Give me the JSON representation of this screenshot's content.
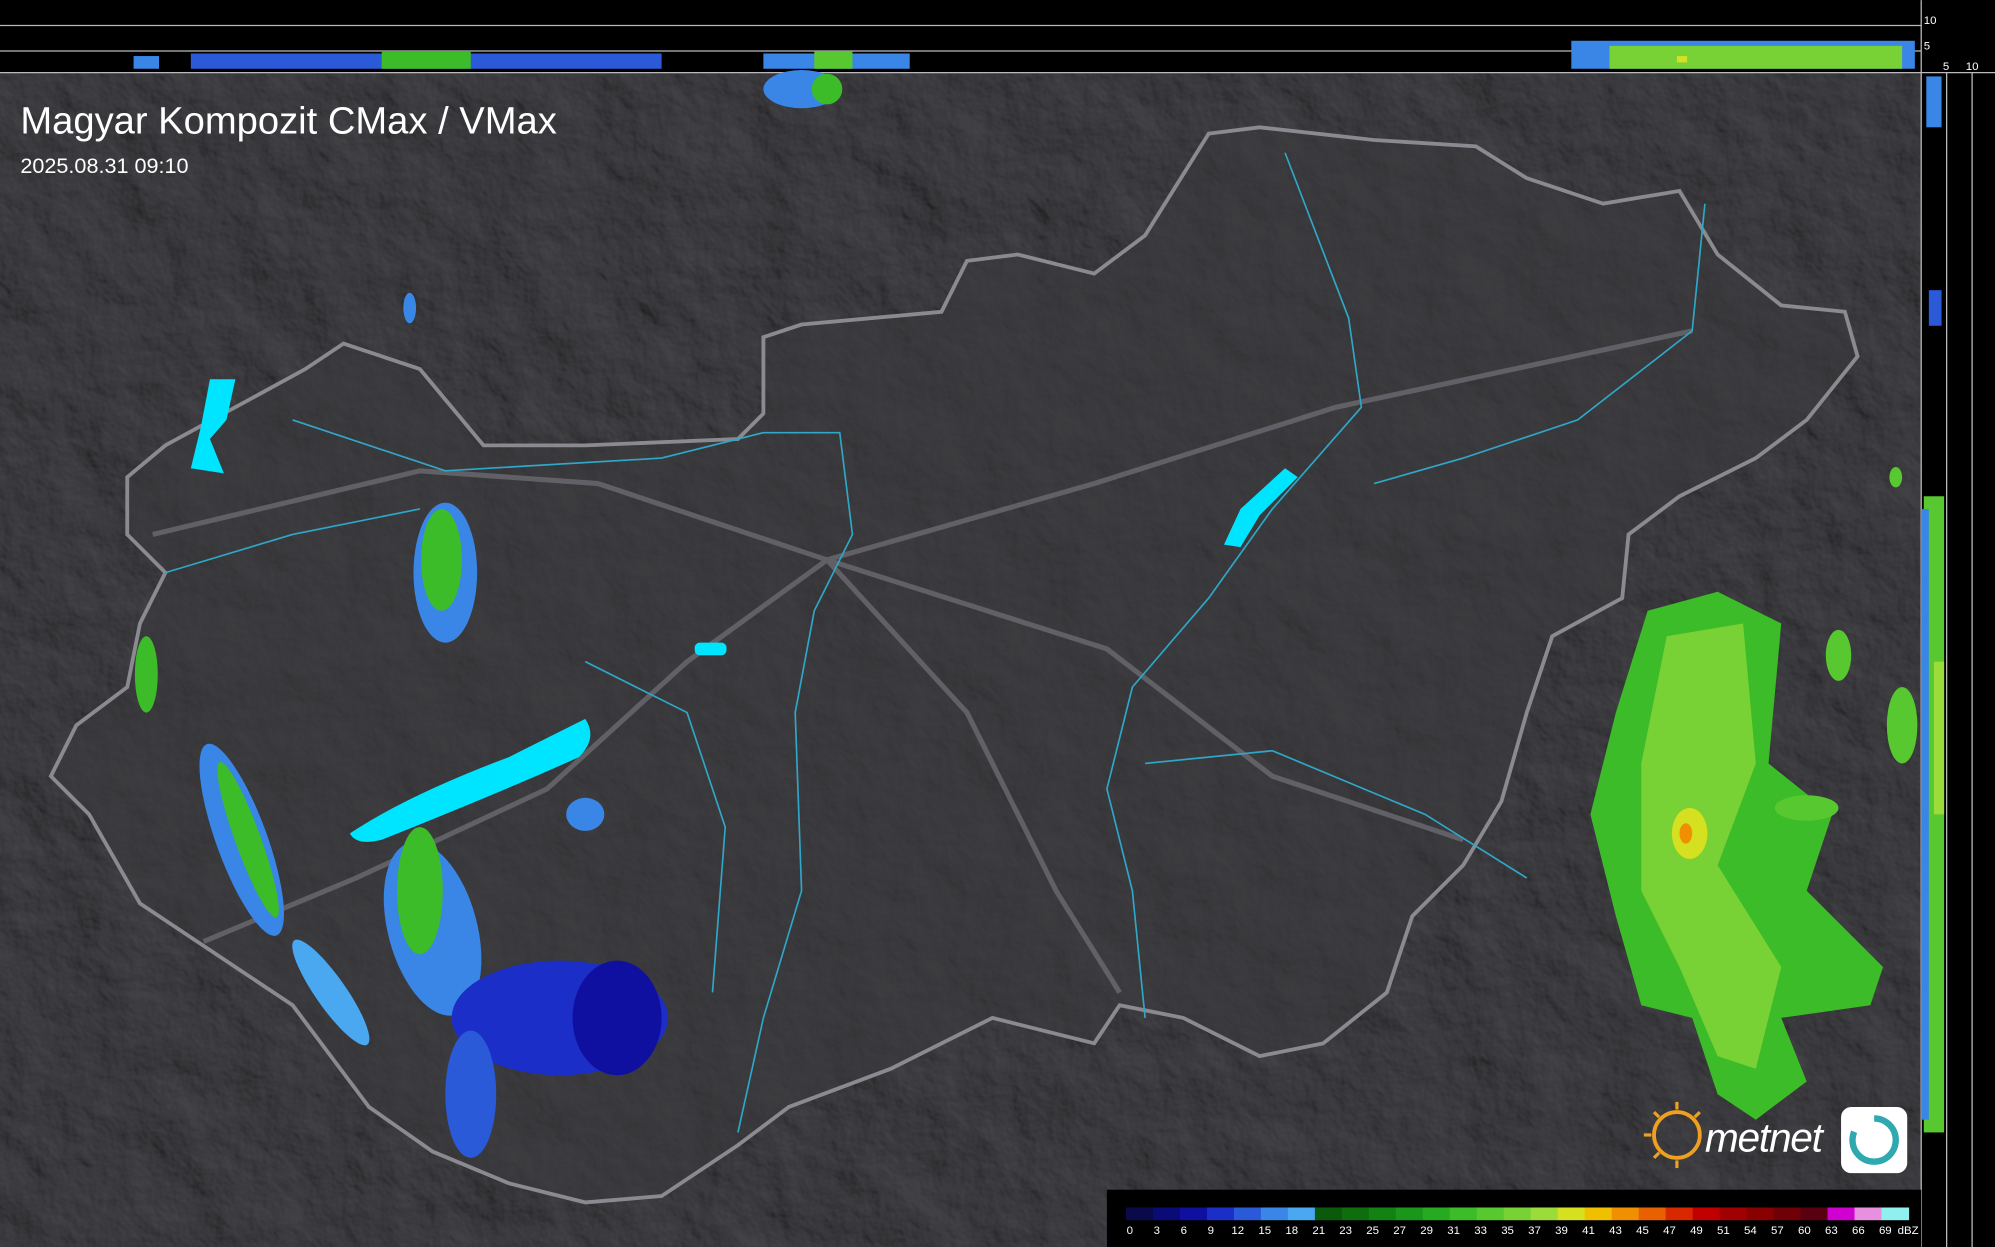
{
  "header": {
    "title": "Magyar Kompozit CMax / VMax",
    "timestamp": "2025.08.31 09:10"
  },
  "side_axis": {
    "top_labels": [
      "10",
      "5"
    ],
    "right_labels": [
      "5",
      "10"
    ]
  },
  "logo": {
    "text": "metnet"
  },
  "legend": {
    "ticks": [
      0,
      3,
      6,
      9,
      12,
      15,
      18,
      21,
      23,
      25,
      27,
      29,
      31,
      33,
      35,
      37,
      39,
      41,
      43,
      45,
      47,
      49,
      51,
      54,
      57,
      60,
      63,
      66,
      69
    ],
    "unit": "dBZ",
    "colors": [
      "#0a0a4a",
      "#0b0b78",
      "#1010a0",
      "#1c2ec8",
      "#2a5ad8",
      "#3a86e6",
      "#4aa8f0",
      "#0b5a0b",
      "#0e6e0e",
      "#128212",
      "#1a961a",
      "#26aa22",
      "#3cbc28",
      "#58c830",
      "#78d236",
      "#9cdc3a",
      "#d4e020",
      "#f0c000",
      "#f09000",
      "#e86000",
      "#d82800",
      "#c00000",
      "#a00000",
      "#880000",
      "#700008",
      "#580010",
      "#d000d0",
      "#e890e0",
      "#90f0f0"
    ]
  }
}
